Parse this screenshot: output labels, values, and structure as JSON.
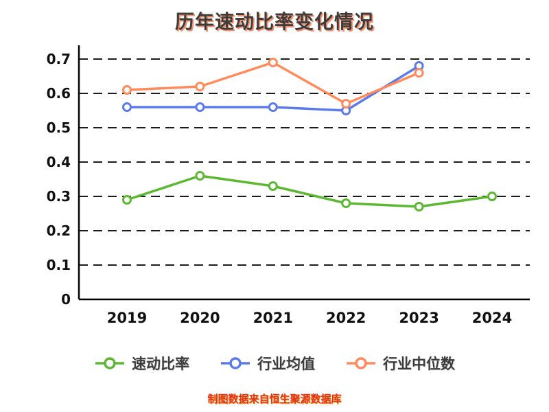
{
  "title": "历年速动比率变化情况",
  "footer": "制图数据来自恒生聚源数据库",
  "chart_data": {
    "type": "line",
    "title": "历年速动比率变化情况",
    "x": [
      "2019",
      "2020",
      "2021",
      "2022",
      "2023",
      "2024"
    ],
    "series": [
      {
        "name": "速动比率",
        "color": "#5cb832",
        "values": [
          0.29,
          0.36,
          0.33,
          0.28,
          0.27,
          0.3
        ]
      },
      {
        "name": "行业均值",
        "color": "#5b7be9",
        "values": [
          0.56,
          0.56,
          0.56,
          0.55,
          0.68,
          null
        ]
      },
      {
        "name": "行业中位数",
        "color": "#ff8a5c",
        "values": [
          0.61,
          0.62,
          0.69,
          0.57,
          0.66,
          null
        ]
      }
    ],
    "xlabel": "",
    "ylabel": "",
    "ylim": [
      0,
      0.7
    ],
    "yticks": [
      0,
      0.1,
      0.2,
      0.3,
      0.4,
      0.5,
      0.6,
      0.7
    ],
    "grid": "dashed-horizontal",
    "legend_position": "bottom",
    "marker_style": "open-circle",
    "axis_color": "#000000",
    "grid_color": "#1c1c1c"
  }
}
